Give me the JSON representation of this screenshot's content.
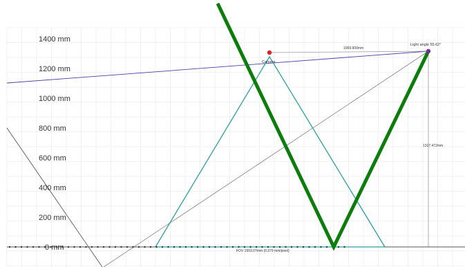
{
  "axis": {
    "y_labels": [
      "1400 mm",
      "1200 mm",
      "1000 mm",
      "800 mm",
      "600 mm",
      "400 mm",
      "200 mm",
      "0 mm"
    ]
  },
  "annotations": {
    "camera_label": "Camera",
    "light_angle_label": "Light angle 55.62°",
    "horizontal_distance_label": "1069.900mm",
    "vertical_distance_label": "1317.472mm",
    "fov_label": "FOV 1553.07mm (0.379 mm/pixel)"
  },
  "colors": {
    "grid": "#e6e6e6",
    "axis": "#555555",
    "beam": "#0a7d0a",
    "fov": "#2aa0a0",
    "light_line": "#4b3fa6",
    "guide": "#808080",
    "camera_marker": "#e02020",
    "light_marker": "#7a2a9a"
  }
}
